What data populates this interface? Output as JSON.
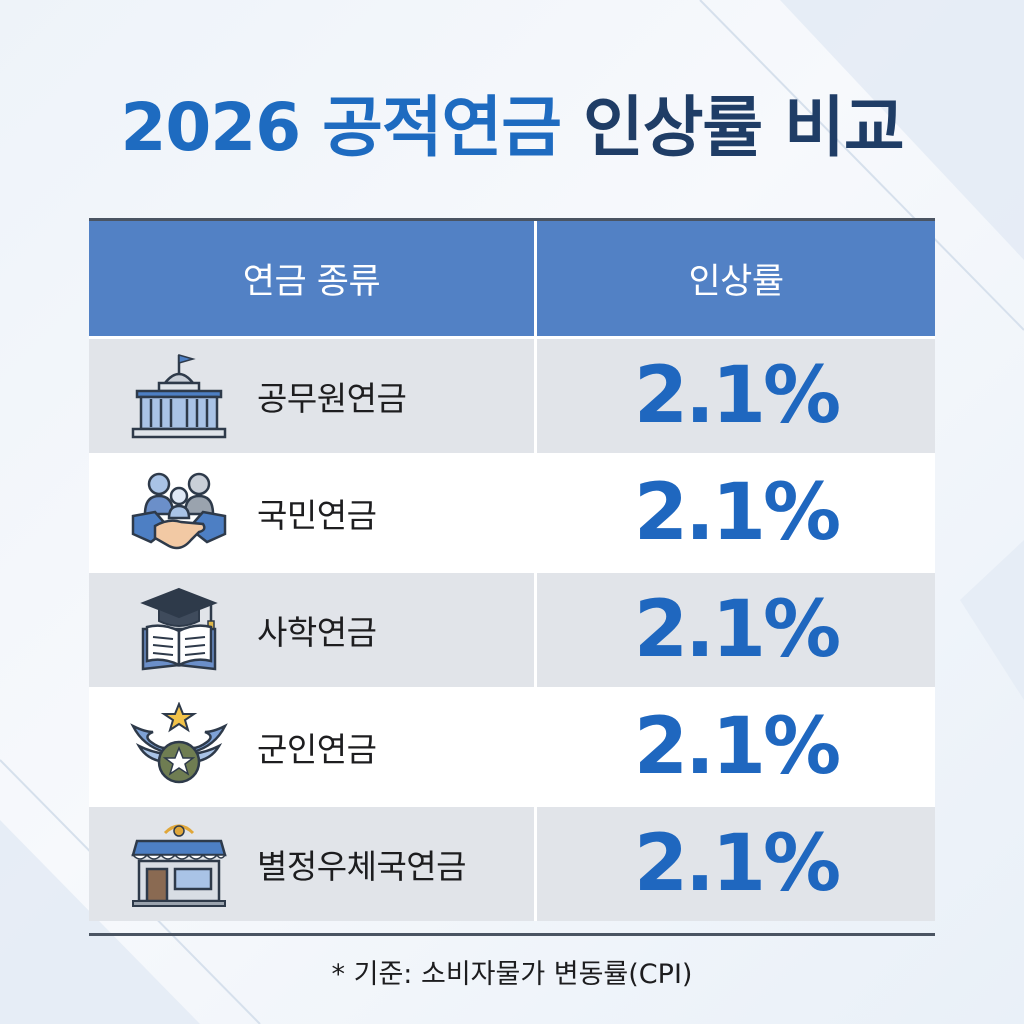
{
  "title": {
    "part1": "2026 공적연금",
    "part2": "인상률 비교"
  },
  "table": {
    "headers": {
      "type": "연금 종류",
      "rate": "인상률"
    },
    "rows": [
      {
        "icon": "government-building-icon",
        "name": "공무원연금",
        "rate": "2.1%"
      },
      {
        "icon": "family-handshake-icon",
        "name": "국민연금",
        "rate": "2.1%"
      },
      {
        "icon": "graduation-book-icon",
        "name": "사학연금",
        "rate": "2.1%"
      },
      {
        "icon": "military-wings-star-icon",
        "name": "군인연금",
        "rate": "2.1%"
      },
      {
        "icon": "post-office-icon",
        "name": "별정우체국연금",
        "rate": "2.1%"
      }
    ]
  },
  "footnote": "* 기준: 소비자물가 변동률(CPI)",
  "colors": {
    "accent": "#1e6bc0",
    "header": "#5281c5",
    "title_dark": "#1f3d66"
  }
}
